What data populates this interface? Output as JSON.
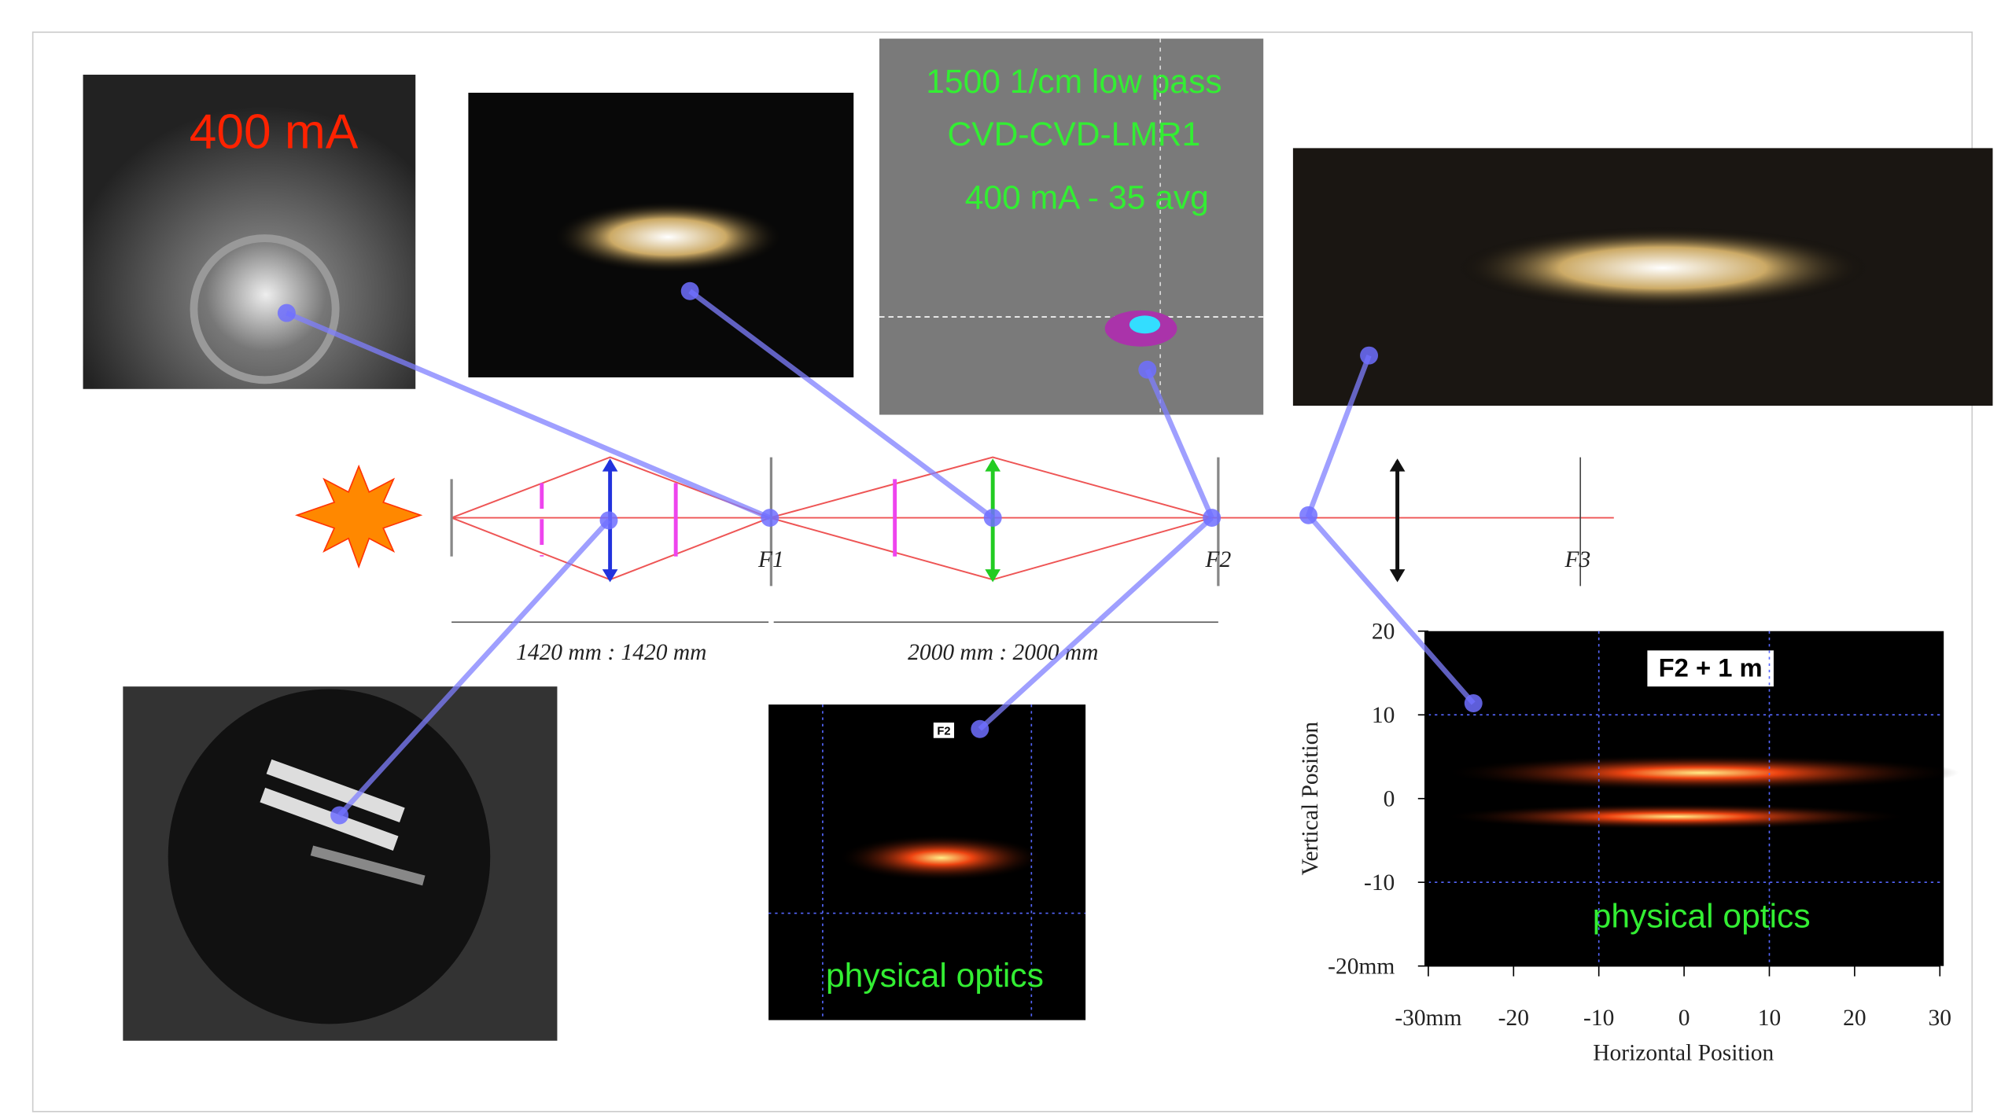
{
  "camera_1": {
    "label": "400 mA"
  },
  "spectrum_image": {
    "lines": [
      "1500 1/cm low pass",
      "CVD-CVD-LMR1",
      "400 mA - 35 avg"
    ]
  },
  "optics": {
    "focus_labels": [
      "F1",
      "F2",
      "F3"
    ],
    "distances": [
      "1420 mm : 1420 mm",
      "2000 mm : 2000 mm"
    ]
  },
  "plot_f2": {
    "label": "F2",
    "annotation": "physical optics"
  },
  "plot_f2_plus_1m": {
    "title": "F2 + 1 m",
    "annotation": "physical optics",
    "x_label": "Horizontal Position",
    "y_label": "Vertical Position",
    "xlim": [
      -30,
      30
    ],
    "ylim": [
      -20,
      20
    ],
    "xticks": [
      {
        "value": -30,
        "label": "-30mm"
      },
      -20,
      -10,
      0,
      10,
      20,
      30
    ],
    "yticks": [
      {
        "value": -20,
        "label": "-20mm"
      },
      -10,
      0,
      10,
      20
    ],
    "grid_values": {
      "x": [
        -10,
        10
      ],
      "y": [
        -10,
        10
      ]
    }
  }
}
